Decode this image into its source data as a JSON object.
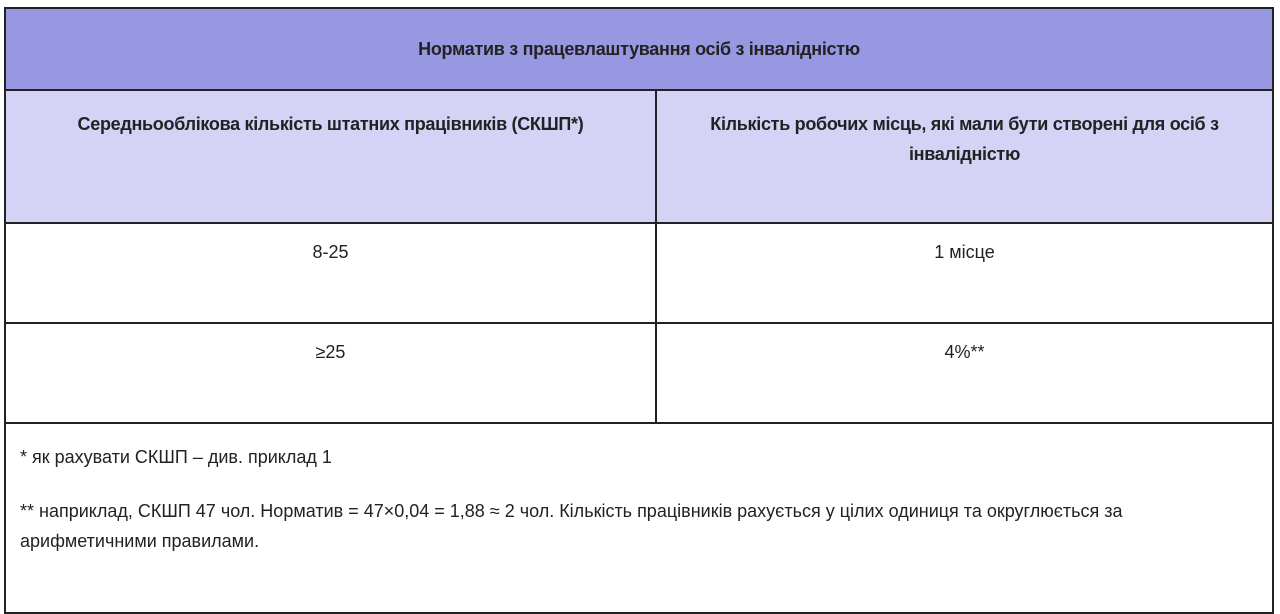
{
  "table": {
    "title": "Норматив з працевлаштування осіб з інвалідністю",
    "headers": [
      "Середньооблікова кількість штатних працівників (СКШП*)",
      "Кількість робочих місць, які мали бути створені для осіб з інвалідністю"
    ],
    "rows": [
      [
        "8-25",
        "1 місце"
      ],
      [
        "≥25",
        "4%**"
      ]
    ],
    "notes": [
      "* як рахувати СКШП – див. приклад 1",
      "** наприклад, СКШП 47 чол. Норматив = 47×0,04 = 1,88 ≈ 2 чол. Кількість працівників рахується у цілих одиниця та округлюється за арифметичними правилами."
    ]
  },
  "colors": {
    "title_bg": "#9898e2",
    "header_bg": "#d4d2f5",
    "border": "#222222"
  }
}
